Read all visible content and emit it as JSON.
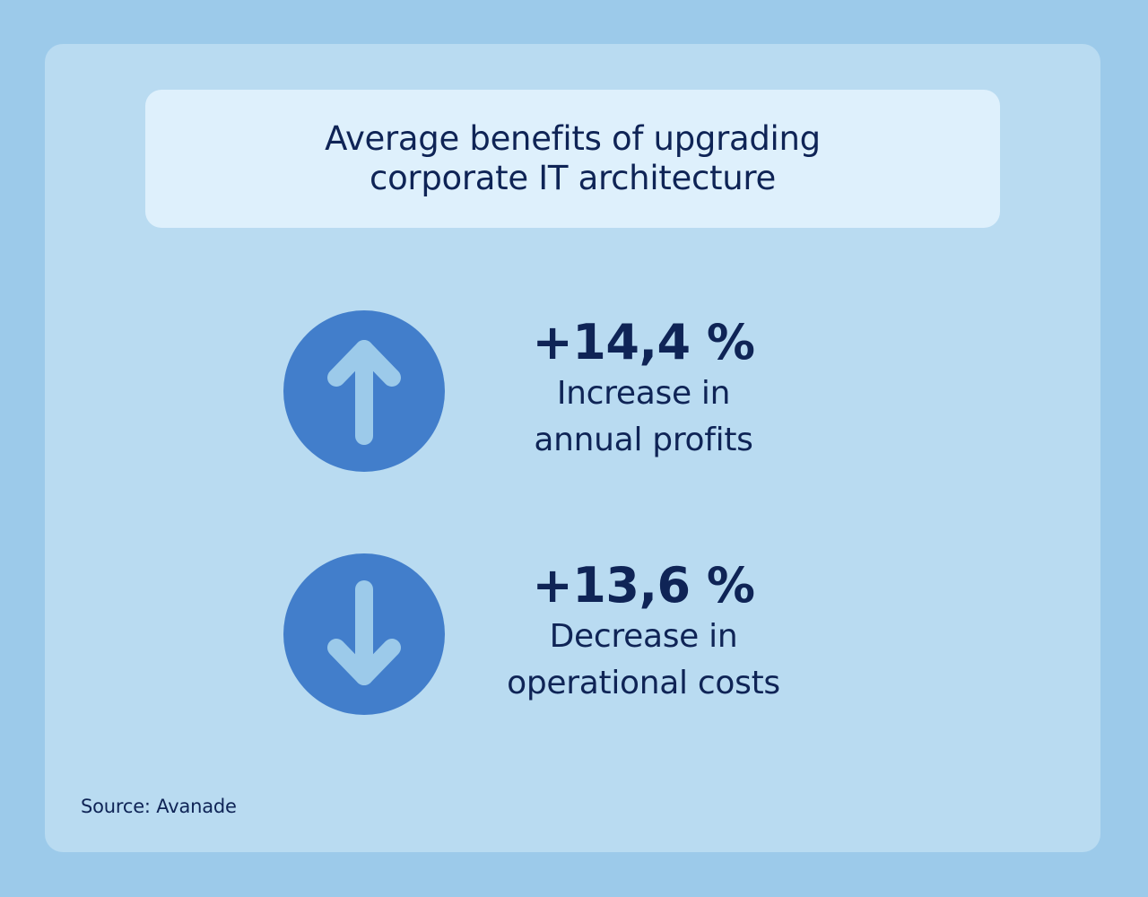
{
  "title": "Average benefits of upgrading corporate IT architecture",
  "stats": [
    {
      "value": "+14,4 %",
      "label_line1": "Increase in",
      "label_line2": "annual profits",
      "icon": "arrow-up-icon"
    },
    {
      "value": "+13,6 %",
      "label_line1": "Decrease in",
      "label_line2": "operational costs",
      "icon": "arrow-down-icon"
    }
  ],
  "source": "Source: Avanade",
  "colors": {
    "background": "#9ccaea",
    "card": "#b9dbf1",
    "title_box": "#def0fc",
    "circle": "#427ecb",
    "arrow": "#9ccaea",
    "text": "#0f2456"
  }
}
